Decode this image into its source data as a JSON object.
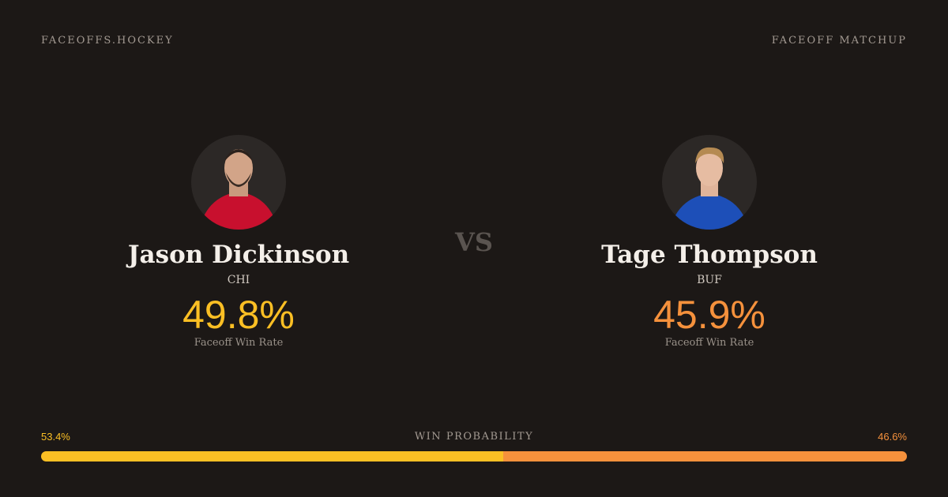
{
  "header": {
    "brand": "FACEOFFS.HOCKEY",
    "label": "FACEOFF MATCHUP"
  },
  "players": [
    {
      "name": "Jason Dickinson",
      "team": "CHI",
      "stat": "49.8%",
      "stat_label": "Faceoff Win Rate",
      "color": "#fbbf24"
    },
    {
      "name": "Tage Thompson",
      "team": "BUF",
      "stat": "45.9%",
      "stat_label": "Faceoff Win Rate",
      "color": "#f5913c"
    }
  ],
  "versus": "VS",
  "win_probability": {
    "label": "WIN PROBABILITY",
    "left": {
      "value": 53.4,
      "label": "53.4%"
    },
    "right": {
      "value": 46.6,
      "label": "46.6%"
    }
  }
}
